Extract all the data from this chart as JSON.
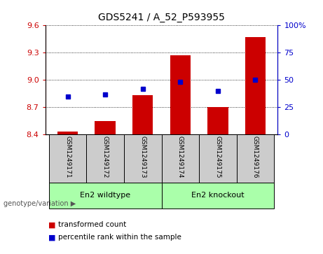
{
  "title": "GDS5241 / A_52_P593955",
  "categories": [
    "GSM1249171",
    "GSM1249172",
    "GSM1249173",
    "GSM1249174",
    "GSM1249175",
    "GSM1249176"
  ],
  "red_values": [
    8.43,
    8.55,
    8.83,
    9.27,
    8.7,
    9.47
  ],
  "blue_values": [
    35,
    37,
    42,
    48,
    40,
    50
  ],
  "ylim_left": [
    8.4,
    9.6
  ],
  "ylim_right": [
    0,
    100
  ],
  "yticks_left": [
    8.4,
    8.7,
    9.0,
    9.3,
    9.6
  ],
  "yticks_right": [
    0,
    25,
    50,
    75,
    100
  ],
  "group1_label": "En2 wildtype",
  "group2_label": "En2 knockout",
  "group1_indices": [
    0,
    1,
    2
  ],
  "group2_indices": [
    3,
    4,
    5
  ],
  "genotype_label": "genotype/variation",
  "legend_red": "transformed count",
  "legend_blue": "percentile rank within the sample",
  "bar_color": "#cc0000",
  "dot_color": "#0000cc",
  "group1_color": "#aaffaa",
  "group2_color": "#aaffaa",
  "bg_color": "#cccccc",
  "bar_bottom": 8.4,
  "bar_width": 0.55
}
